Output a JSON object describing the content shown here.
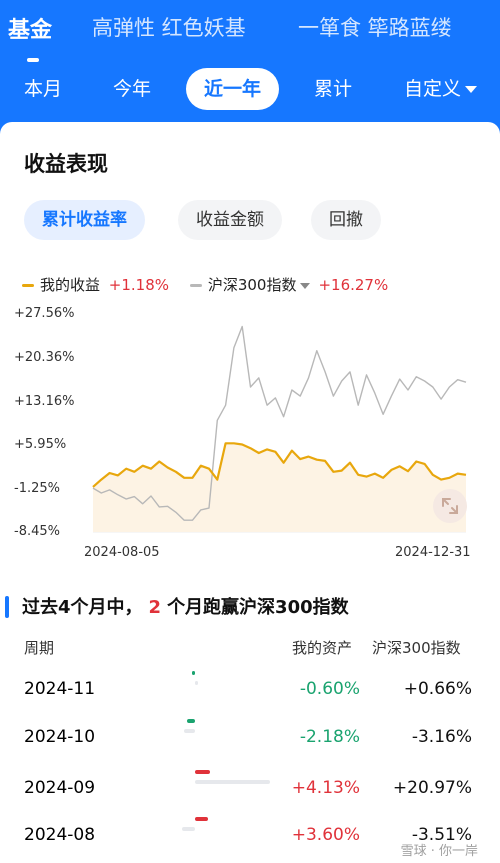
{
  "top_tabs": [
    "基金",
    "高弹性 红色妖基",
    "一箪食 筚路蓝缕"
  ],
  "period_tabs": [
    "本月",
    "今年",
    "近一年",
    "累计",
    "自定义"
  ],
  "section_title": "收益表现",
  "metric_tabs": [
    "累计收益率",
    "收益金额",
    "回撤"
  ],
  "legend": {
    "mine_label": "我的收益",
    "mine_value": "+1.18%",
    "bench_label": "沪深300指数",
    "bench_value": "+16.27%"
  },
  "colors": {
    "accent": "#1677ff",
    "mine": "#e8a70d",
    "bench": "#b8b8b8",
    "up": "#e0323a",
    "down": "#1aa36f"
  },
  "chart_data": {
    "type": "line",
    "y_ticks": [
      "+27.56%",
      "+20.36%",
      "+13.16%",
      "+5.95%",
      "-1.25%",
      "-8.45%"
    ],
    "ylim": [
      -8.45,
      27.56
    ],
    "x_start_label": "2024-08-05",
    "x_end_label": "2024-12-31",
    "series": [
      {
        "name": "我的收益",
        "values": [
          -1.0,
          0.2,
          1.3,
          0.9,
          2.0,
          1.5,
          2.5,
          2.0,
          3.2,
          2.2,
          1.5,
          0.5,
          0.5,
          2.5,
          2.0,
          0.2,
          6.2,
          6.2,
          6.0,
          5.4,
          4.6,
          5.2,
          4.8,
          3.0,
          5.0,
          3.6,
          4.0,
          3.5,
          3.3,
          1.5,
          1.7,
          3.0,
          1.0,
          0.7,
          1.2,
          0.5,
          1.8,
          2.4,
          1.6,
          3.2,
          2.8,
          1.0,
          0.2,
          0.5,
          1.2,
          1.0
        ]
      },
      {
        "name": "沪深300指数",
        "values": [
          -1.2,
          -2.0,
          -1.5,
          -2.3,
          -3.0,
          -2.6,
          -3.8,
          -2.5,
          -4.3,
          -4.2,
          -5.2,
          -6.5,
          -6.5,
          -4.8,
          -4.5,
          10.0,
          12.5,
          22.0,
          25.5,
          15.5,
          17.0,
          12.5,
          13.7,
          10.6,
          15.0,
          14.0,
          17.0,
          21.5,
          18.0,
          14.0,
          16.5,
          18.0,
          12.5,
          17.5,
          14.5,
          11.0,
          14.0,
          16.8,
          15.0,
          17.2,
          16.5,
          15.5,
          13.5,
          15.5,
          16.7,
          16.3
        ]
      }
    ]
  },
  "summary": {
    "prefix": "过去4个月中，",
    "count": "2",
    "suffix": "个月跑赢沪深300指数"
  },
  "table": {
    "headers": [
      "周期",
      "我的资产",
      "沪深300指数"
    ],
    "rows": [
      {
        "period": "2024-11",
        "mine": "-0.60%",
        "bench": "+0.66%",
        "mine_dir": "down",
        "mine_level": -0.6,
        "bench_level": 0.66
      },
      {
        "period": "2024-10",
        "mine": "-2.18%",
        "bench": "-3.16%",
        "mine_dir": "down",
        "mine_level": -2.18,
        "bench_level": -3.16
      },
      {
        "period": "2024-09",
        "mine": "+4.13%",
        "bench": "+20.97%",
        "mine_dir": "up",
        "mine_level": 4.13,
        "bench_level": 20.97
      },
      {
        "period": "2024-08",
        "mine": "+3.60%",
        "bench": "-3.51%",
        "mine_dir": "up",
        "mine_level": 3.6,
        "bench_level": -3.51
      }
    ]
  },
  "watermark": "雪球 · 你一岸"
}
